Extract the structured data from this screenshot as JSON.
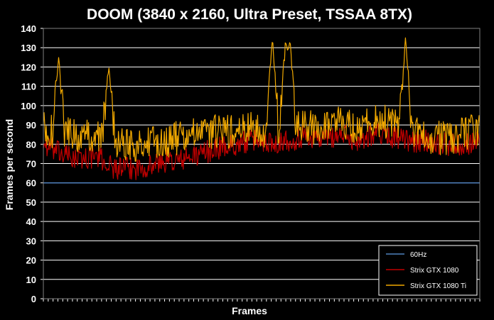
{
  "chart_data": {
    "type": "line",
    "title": "DOOM (3840 x 2160, Ultra Preset, TSSAA 8TX)",
    "xlabel": "Frames",
    "ylabel": "Frames per second",
    "ylim": [
      0,
      140
    ],
    "yticks": [
      0,
      10,
      20,
      30,
      40,
      50,
      60,
      70,
      80,
      90,
      100,
      110,
      120,
      130,
      140
    ],
    "grid": true,
    "legend_position": "bottom-right",
    "series": [
      {
        "name": "60Hz",
        "color": "#4f81bd",
        "kind": "constant",
        "value": 60
      },
      {
        "name": "Strix GTX 1080",
        "color": "#c00000",
        "kind": "profile",
        "points": 600,
        "profile": [
          [
            0,
            80
          ],
          [
            0.04,
            75
          ],
          [
            0.08,
            72
          ],
          [
            0.12,
            74
          ],
          [
            0.16,
            68
          ],
          [
            0.2,
            67
          ],
          [
            0.24,
            69
          ],
          [
            0.28,
            71
          ],
          [
            0.32,
            72
          ],
          [
            0.36,
            75
          ],
          [
            0.4,
            78
          ],
          [
            0.44,
            80
          ],
          [
            0.48,
            82
          ],
          [
            0.52,
            81
          ],
          [
            0.56,
            82
          ],
          [
            0.6,
            84
          ],
          [
            0.64,
            83
          ],
          [
            0.68,
            85
          ],
          [
            0.72,
            82
          ],
          [
            0.76,
            86
          ],
          [
            0.8,
            84
          ],
          [
            0.84,
            81
          ],
          [
            0.88,
            82
          ],
          [
            0.92,
            80
          ],
          [
            0.96,
            80
          ],
          [
            1,
            82
          ]
        ],
        "noise": 6,
        "min": 60,
        "max": 100
      },
      {
        "name": "Strix GTX 1080 Ti",
        "color": "#f0a800",
        "kind": "profile",
        "points": 600,
        "profile": [
          [
            0,
            88
          ],
          [
            0.04,
            86
          ],
          [
            0.08,
            84
          ],
          [
            0.12,
            85
          ],
          [
            0.16,
            82
          ],
          [
            0.2,
            80
          ],
          [
            0.24,
            80
          ],
          [
            0.28,
            82
          ],
          [
            0.32,
            84
          ],
          [
            0.36,
            85
          ],
          [
            0.4,
            87
          ],
          [
            0.44,
            86
          ],
          [
            0.48,
            88
          ],
          [
            0.52,
            87
          ],
          [
            0.56,
            90
          ],
          [
            0.6,
            88
          ],
          [
            0.64,
            90
          ],
          [
            0.68,
            92
          ],
          [
            0.72,
            88
          ],
          [
            0.76,
            93
          ],
          [
            0.8,
            90
          ],
          [
            0.84,
            87
          ],
          [
            0.88,
            84
          ],
          [
            0.92,
            83
          ],
          [
            0.96,
            85
          ],
          [
            1,
            88
          ]
        ],
        "noise": 9,
        "min": 69,
        "max": 112,
        "spikes": [
          [
            0.035,
            125
          ],
          [
            0.15,
            120
          ],
          [
            0.525,
            135
          ],
          [
            0.555,
            133
          ],
          [
            0.565,
            134
          ],
          [
            0.83,
            136
          ]
        ]
      }
    ]
  }
}
